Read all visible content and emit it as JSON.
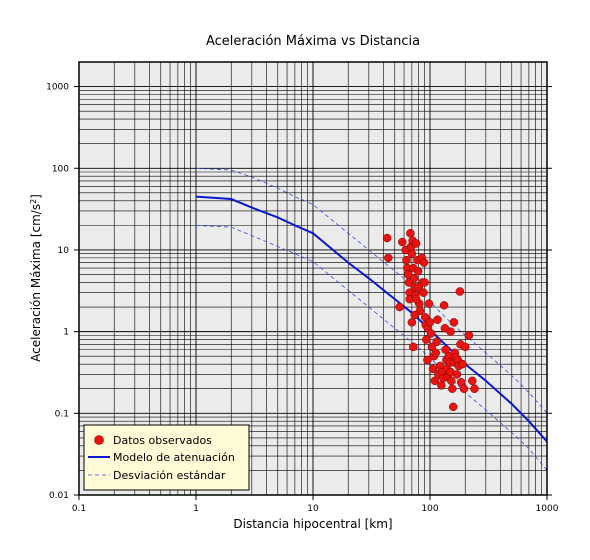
{
  "chart_data": {
    "type": "scatter",
    "title": "Aceleración Máxima vs Distancia",
    "xlabel": "Distancia hipocentral [km]",
    "ylabel_main": "Aceleración Máxima [cm/s",
    "ylabel_sup": "2",
    "ylabel_end": "]",
    "x_scale": "log",
    "y_scale": "log",
    "xlim": [
      0.1,
      1000
    ],
    "ylim": [
      0.01,
      2000
    ],
    "x_ticks": [
      0.1,
      1,
      10,
      100,
      1000
    ],
    "x_tick_labels": [
      "0.1",
      "1",
      "10",
      "100",
      "1000"
    ],
    "y_ticks": [
      0.01,
      0.1,
      1,
      10,
      100,
      1000
    ],
    "y_tick_labels": [
      "0.01",
      "0.1",
      "1",
      "10",
      "100",
      "1000"
    ],
    "grid": true,
    "legend_position": "bottom-left",
    "colors": {
      "background": "#ebebeb",
      "observed": "#e8140f",
      "model": "#0a18d2",
      "std": "#3a4ae0"
    },
    "series": [
      {
        "name": "Datos observados",
        "kind": "scatter",
        "points": [
          [
            43,
            14
          ],
          [
            44,
            8
          ],
          [
            55,
            2
          ],
          [
            58,
            12.5
          ],
          [
            62,
            10
          ],
          [
            63,
            7.5
          ],
          [
            64,
            6
          ],
          [
            65,
            5
          ],
          [
            66,
            4
          ],
          [
            67,
            3
          ],
          [
            67,
            2.5
          ],
          [
            68,
            16
          ],
          [
            69,
            11
          ],
          [
            70,
            9
          ],
          [
            71,
            13
          ],
          [
            72,
            6
          ],
          [
            73,
            4.5
          ],
          [
            74,
            3.5
          ],
          [
            75,
            2.8
          ],
          [
            76,
            12
          ],
          [
            78,
            7.5
          ],
          [
            79,
            5.5
          ],
          [
            80,
            3.5
          ],
          [
            81,
            2.2
          ],
          [
            82,
            1.8
          ],
          [
            70,
            1.3
          ],
          [
            72,
            0.65
          ],
          [
            74,
            1.6
          ],
          [
            76,
            2.5
          ],
          [
            85,
            8
          ],
          [
            86,
            4
          ],
          [
            88,
            3
          ],
          [
            89,
            7
          ],
          [
            90,
            4
          ],
          [
            91,
            1.5
          ],
          [
            92,
            1.2
          ],
          [
            93,
            0.8
          ],
          [
            95,
            0.45
          ],
          [
            96,
            1.1
          ],
          [
            98,
            2.2
          ],
          [
            100,
            1.3
          ],
          [
            102,
            0.95
          ],
          [
            104,
            0.65
          ],
          [
            106,
            0.35
          ],
          [
            108,
            0.5
          ],
          [
            110,
            0.25
          ],
          [
            112,
            0.55
          ],
          [
            114,
            0.75
          ],
          [
            116,
            1.4
          ],
          [
            118,
            0.3
          ],
          [
            122,
            0.38
          ],
          [
            125,
            0.22
          ],
          [
            128,
            0.32
          ],
          [
            130,
            0.27
          ],
          [
            132,
            2.1
          ],
          [
            134,
            1.1
          ],
          [
            136,
            0.6
          ],
          [
            138,
            0.45
          ],
          [
            140,
            0.35
          ],
          [
            142,
            0.28
          ],
          [
            145,
            0.5
          ],
          [
            148,
            0.42
          ],
          [
            150,
            0.32
          ],
          [
            152,
            0.25
          ],
          [
            155,
            0.2
          ],
          [
            158,
            0.12
          ],
          [
            160,
            0.42
          ],
          [
            163,
            0.55
          ],
          [
            166,
            0.48
          ],
          [
            170,
            0.3
          ],
          [
            173,
            0.45
          ],
          [
            176,
            0.38
          ],
          [
            180,
            3.1
          ],
          [
            182,
            0.7
          ],
          [
            185,
            0.24
          ],
          [
            190,
            0.4
          ],
          [
            195,
            0.2
          ],
          [
            200,
            0.65
          ],
          [
            215,
            0.9
          ],
          [
            230,
            0.25
          ],
          [
            240,
            0.2
          ],
          [
            160,
            1.3
          ],
          [
            150,
            1.0
          ]
        ]
      },
      {
        "name": "Modelo de atenuación",
        "kind": "line",
        "points": [
          [
            1,
            45
          ],
          [
            2,
            42
          ],
          [
            3,
            33
          ],
          [
            5,
            25
          ],
          [
            7,
            20
          ],
          [
            10,
            16
          ],
          [
            20,
            7
          ],
          [
            30,
            4.5
          ],
          [
            50,
            2.5
          ],
          [
            70,
            1.7
          ],
          [
            100,
            1.05
          ],
          [
            150,
            0.6
          ],
          [
            200,
            0.4
          ],
          [
            300,
            0.25
          ],
          [
            500,
            0.13
          ],
          [
            700,
            0.08
          ],
          [
            1000,
            0.045
          ]
        ]
      },
      {
        "name": "Desviación estándar",
        "kind": "dashed",
        "points": [
          [
            1,
            100
          ],
          [
            2,
            95
          ],
          [
            3,
            78
          ],
          [
            5,
            57
          ],
          [
            7,
            45
          ],
          [
            10,
            36
          ],
          [
            20,
            16
          ],
          [
            30,
            10
          ],
          [
            50,
            5.5
          ],
          [
            70,
            3.8
          ],
          [
            100,
            2.3
          ],
          [
            150,
            1.3
          ],
          [
            200,
            0.9
          ],
          [
            300,
            0.55
          ],
          [
            500,
            0.29
          ],
          [
            700,
            0.18
          ],
          [
            1000,
            0.1
          ]
        ]
      },
      {
        "name": "",
        "kind": "dashed",
        "points": [
          [
            1,
            20
          ],
          [
            2,
            19
          ],
          [
            3,
            15
          ],
          [
            5,
            11
          ],
          [
            7,
            9
          ],
          [
            10,
            7.2
          ],
          [
            20,
            3.2
          ],
          [
            30,
            2
          ],
          [
            50,
            1.1
          ],
          [
            70,
            0.75
          ],
          [
            100,
            0.48
          ],
          [
            150,
            0.27
          ],
          [
            200,
            0.18
          ],
          [
            300,
            0.11
          ],
          [
            500,
            0.058
          ],
          [
            700,
            0.037
          ],
          [
            1000,
            0.02
          ]
        ]
      }
    ]
  },
  "legend": {
    "items": [
      {
        "label": "Datos observados",
        "icon": "red-dot-marker"
      },
      {
        "label": "Modelo de atenuación",
        "icon": "solid-blue-line"
      },
      {
        "label": "Desviación estándar",
        "icon": "dashed-blue-line"
      }
    ],
    "background": "#fffbd6"
  }
}
